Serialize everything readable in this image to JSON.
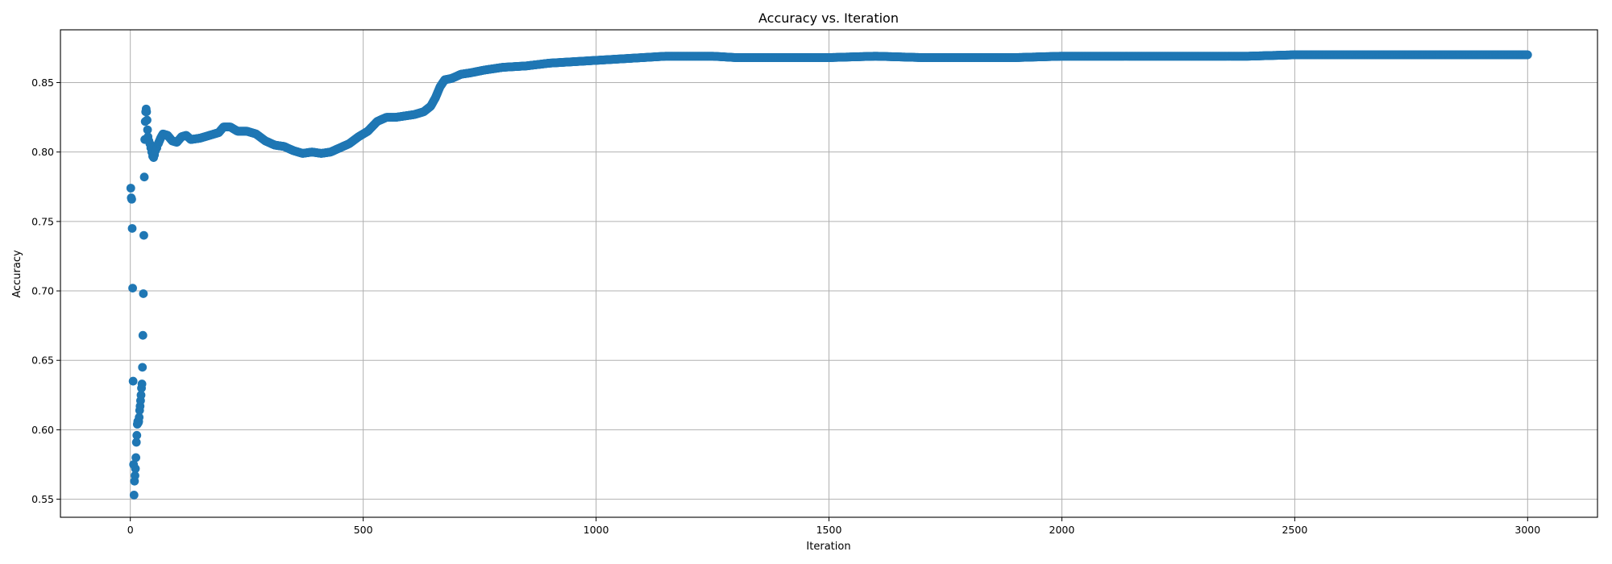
{
  "chart_data": {
    "type": "scatter",
    "title": "Accuracy vs. Iteration",
    "xlabel": "Iteration",
    "ylabel": "Accuracy",
    "xlim": [
      -150,
      3150
    ],
    "ylim": [
      0.537,
      0.888
    ],
    "xticks": [
      0,
      500,
      1000,
      1500,
      2000,
      2500,
      3000
    ],
    "xtick_labels": [
      "0",
      "500",
      "1000",
      "1500",
      "2000",
      "2500",
      "3000"
    ],
    "yticks": [
      0.55,
      0.6,
      0.65,
      0.7,
      0.75,
      0.8,
      0.85
    ],
    "ytick_labels": [
      "0.55",
      "0.60",
      "0.65",
      "0.70",
      "0.75",
      "0.80",
      "0.85"
    ],
    "grid": true,
    "marker_color": "#1f77b4",
    "series": [
      {
        "early_points": [
          {
            "x": 1,
            "y": 0.774
          },
          {
            "x": 2,
            "y": 0.767
          },
          {
            "x": 3,
            "y": 0.766
          },
          {
            "x": 4,
            "y": 0.745
          },
          {
            "x": 5,
            "y": 0.702
          },
          {
            "x": 6,
            "y": 0.635
          },
          {
            "x": 7,
            "y": 0.575
          },
          {
            "x": 8,
            "y": 0.553
          },
          {
            "x": 9,
            "y": 0.563
          },
          {
            "x": 10,
            "y": 0.567
          },
          {
            "x": 11,
            "y": 0.572
          },
          {
            "x": 12,
            "y": 0.58
          },
          {
            "x": 13,
            "y": 0.591
          },
          {
            "x": 14,
            "y": 0.596
          },
          {
            "x": 15,
            "y": 0.604
          },
          {
            "x": 16,
            "y": 0.606
          },
          {
            "x": 17,
            "y": 0.605
          },
          {
            "x": 18,
            "y": 0.606
          },
          {
            "x": 19,
            "y": 0.609
          },
          {
            "x": 20,
            "y": 0.614
          },
          {
            "x": 21,
            "y": 0.617
          },
          {
            "x": 22,
            "y": 0.621
          },
          {
            "x": 23,
            "y": 0.625
          },
          {
            "x": 24,
            "y": 0.63
          },
          {
            "x": 25,
            "y": 0.633
          },
          {
            "x": 26,
            "y": 0.645
          },
          {
            "x": 27,
            "y": 0.668
          },
          {
            "x": 28,
            "y": 0.698
          },
          {
            "x": 29,
            "y": 0.74
          },
          {
            "x": 30,
            "y": 0.782
          },
          {
            "x": 31,
            "y": 0.809
          },
          {
            "x": 32,
            "y": 0.822
          },
          {
            "x": 33,
            "y": 0.829
          },
          {
            "x": 34,
            "y": 0.831
          },
          {
            "x": 35,
            "y": 0.829
          },
          {
            "x": 36,
            "y": 0.823
          },
          {
            "x": 37,
            "y": 0.816
          },
          {
            "x": 38,
            "y": 0.811
          },
          {
            "x": 40,
            "y": 0.808
          },
          {
            "x": 42,
            "y": 0.806
          },
          {
            "x": 44,
            "y": 0.803
          },
          {
            "x": 46,
            "y": 0.8
          },
          {
            "x": 48,
            "y": 0.797
          },
          {
            "x": 50,
            "y": 0.796
          },
          {
            "x": 52,
            "y": 0.798
          },
          {
            "x": 54,
            "y": 0.801
          },
          {
            "x": 57,
            "y": 0.803
          },
          {
            "x": 60,
            "y": 0.806
          }
        ],
        "trend_points": [
          {
            "x": 60,
            "y": 0.806
          },
          {
            "x": 65,
            "y": 0.81
          },
          {
            "x": 70,
            "y": 0.813
          },
          {
            "x": 80,
            "y": 0.812
          },
          {
            "x": 90,
            "y": 0.808
          },
          {
            "x": 100,
            "y": 0.807
          },
          {
            "x": 110,
            "y": 0.811
          },
          {
            "x": 120,
            "y": 0.812
          },
          {
            "x": 130,
            "y": 0.809
          },
          {
            "x": 150,
            "y": 0.81
          },
          {
            "x": 170,
            "y": 0.812
          },
          {
            "x": 190,
            "y": 0.814
          },
          {
            "x": 200,
            "y": 0.818
          },
          {
            "x": 215,
            "y": 0.818
          },
          {
            "x": 230,
            "y": 0.815
          },
          {
            "x": 250,
            "y": 0.815
          },
          {
            "x": 270,
            "y": 0.813
          },
          {
            "x": 290,
            "y": 0.808
          },
          {
            "x": 310,
            "y": 0.805
          },
          {
            "x": 330,
            "y": 0.804
          },
          {
            "x": 350,
            "y": 0.801
          },
          {
            "x": 370,
            "y": 0.799
          },
          {
            "x": 390,
            "y": 0.8
          },
          {
            "x": 410,
            "y": 0.799
          },
          {
            "x": 430,
            "y": 0.8
          },
          {
            "x": 450,
            "y": 0.803
          },
          {
            "x": 470,
            "y": 0.806
          },
          {
            "x": 490,
            "y": 0.811
          },
          {
            "x": 510,
            "y": 0.815
          },
          {
            "x": 530,
            "y": 0.822
          },
          {
            "x": 550,
            "y": 0.825
          },
          {
            "x": 570,
            "y": 0.825
          },
          {
            "x": 590,
            "y": 0.826
          },
          {
            "x": 610,
            "y": 0.827
          },
          {
            "x": 630,
            "y": 0.829
          },
          {
            "x": 645,
            "y": 0.833
          },
          {
            "x": 655,
            "y": 0.839
          },
          {
            "x": 665,
            "y": 0.847
          },
          {
            "x": 675,
            "y": 0.852
          },
          {
            "x": 690,
            "y": 0.853
          },
          {
            "x": 710,
            "y": 0.856
          },
          {
            "x": 730,
            "y": 0.857
          },
          {
            "x": 760,
            "y": 0.859
          },
          {
            "x": 800,
            "y": 0.861
          },
          {
            "x": 850,
            "y": 0.862
          },
          {
            "x": 900,
            "y": 0.864
          },
          {
            "x": 950,
            "y": 0.865
          },
          {
            "x": 1000,
            "y": 0.866
          },
          {
            "x": 1050,
            "y": 0.867
          },
          {
            "x": 1100,
            "y": 0.868
          },
          {
            "x": 1150,
            "y": 0.869
          },
          {
            "x": 1200,
            "y": 0.869
          },
          {
            "x": 1250,
            "y": 0.869
          },
          {
            "x": 1300,
            "y": 0.868
          },
          {
            "x": 1350,
            "y": 0.868
          },
          {
            "x": 1400,
            "y": 0.868
          },
          {
            "x": 1500,
            "y": 0.868
          },
          {
            "x": 1600,
            "y": 0.869
          },
          {
            "x": 1700,
            "y": 0.868
          },
          {
            "x": 1800,
            "y": 0.868
          },
          {
            "x": 1900,
            "y": 0.868
          },
          {
            "x": 2000,
            "y": 0.869
          },
          {
            "x": 2100,
            "y": 0.869
          },
          {
            "x": 2200,
            "y": 0.869
          },
          {
            "x": 2300,
            "y": 0.869
          },
          {
            "x": 2400,
            "y": 0.869
          },
          {
            "x": 2500,
            "y": 0.87
          },
          {
            "x": 2600,
            "y": 0.87
          },
          {
            "x": 2700,
            "y": 0.87
          },
          {
            "x": 2800,
            "y": 0.87
          },
          {
            "x": 2900,
            "y": 0.87
          },
          {
            "x": 3000,
            "y": 0.87
          }
        ]
      }
    ]
  }
}
